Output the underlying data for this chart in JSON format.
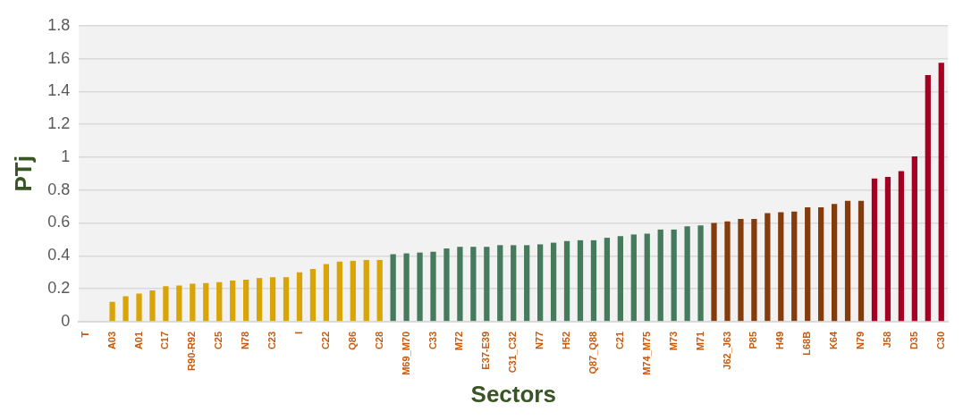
{
  "chart_data": {
    "type": "bar",
    "xlabel": "Sectors",
    "ylabel": "PTj",
    "categories": [
      "T",
      null,
      "A03",
      null,
      "A01",
      null,
      "C17",
      null,
      "R90-R92",
      null,
      "C25",
      null,
      "N78",
      null,
      "C23",
      null,
      "I",
      null,
      "C22",
      null,
      "Q86",
      null,
      "C28",
      null,
      "M69_M70",
      null,
      "C33",
      null,
      "M72",
      null,
      "E37-E39",
      null,
      "C31_C32",
      null,
      "N77",
      null,
      "H52",
      null,
      "Q87_Q88",
      null,
      "C21",
      null,
      "M74_M75",
      null,
      "M73",
      null,
      "M71",
      null,
      "J62_J63",
      null,
      "P85",
      null,
      "H49",
      null,
      "L68B",
      null,
      "K64",
      null,
      "N79",
      null,
      "J58",
      null,
      "D35",
      null,
      "C30"
    ],
    "values": [
      null,
      null,
      0.12,
      0.155,
      0.17,
      0.19,
      0.215,
      0.22,
      0.23,
      0.235,
      0.24,
      0.25,
      0.255,
      0.265,
      0.27,
      0.27,
      0.3,
      0.32,
      0.35,
      0.365,
      0.37,
      0.375,
      0.375,
      0.41,
      0.415,
      0.42,
      0.425,
      0.445,
      0.455,
      0.455,
      0.455,
      0.465,
      0.465,
      0.465,
      0.47,
      0.48,
      0.49,
      0.495,
      0.495,
      0.51,
      0.52,
      0.53,
      0.535,
      0.56,
      0.56,
      0.58,
      0.585,
      0.6,
      0.61,
      0.625,
      0.625,
      0.66,
      0.665,
      0.67,
      0.695,
      0.695,
      0.715,
      0.735,
      0.735,
      0.87,
      0.88,
      0.915,
      1.005,
      1.5,
      1.575
    ],
    "colors": [
      "#d9a406",
      "#d9a406",
      "#d9a406",
      "#d9a406",
      "#d9a406",
      "#d9a406",
      "#d9a406",
      "#d9a406",
      "#d9a406",
      "#d9a406",
      "#d9a406",
      "#d9a406",
      "#d9a406",
      "#d9a406",
      "#d9a406",
      "#d9a406",
      "#d9a406",
      "#d9a406",
      "#d9a406",
      "#d9a406",
      "#d9a406",
      "#d9a406",
      "#d9a406",
      "#467a5c",
      "#467a5c",
      "#467a5c",
      "#467a5c",
      "#467a5c",
      "#467a5c",
      "#467a5c",
      "#467a5c",
      "#467a5c",
      "#467a5c",
      "#467a5c",
      "#467a5c",
      "#467a5c",
      "#467a5c",
      "#467a5c",
      "#467a5c",
      "#467a5c",
      "#467a5c",
      "#467a5c",
      "#467a5c",
      "#467a5c",
      "#467a5c",
      "#467a5c",
      "#467a5c",
      "#843c0c",
      "#843c0c",
      "#843c0c",
      "#843c0c",
      "#843c0c",
      "#843c0c",
      "#843c0c",
      "#843c0c",
      "#843c0c",
      "#843c0c",
      "#843c0c",
      "#843c0c",
      "#a50021",
      "#a50021",
      "#a50021",
      "#a50021",
      "#a50021",
      "#a50021"
    ],
    "ylim": [
      0,
      1.8
    ],
    "yticks": [
      0,
      0.2,
      0.4,
      0.6,
      0.8,
      1,
      1.2,
      1.4,
      1.6,
      1.8
    ],
    "grid": "y",
    "legend": false
  }
}
